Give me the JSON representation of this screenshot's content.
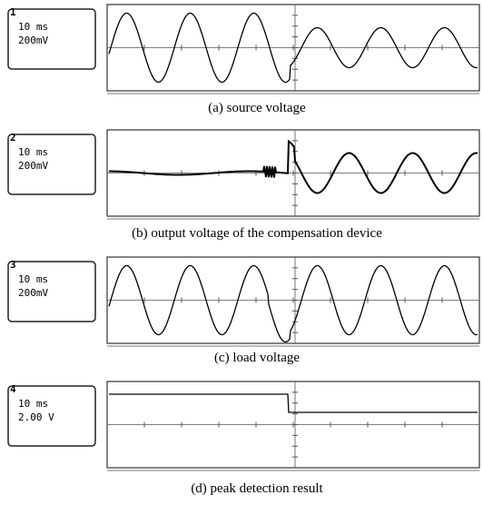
{
  "panels": [
    {
      "channel": "1",
      "timebase": "10 ms",
      "scale": "200mV",
      "caption": "(a) source voltage"
    },
    {
      "channel": "2",
      "timebase": "10 ms",
      "scale": "200mV",
      "caption": "(b) output voltage of the compensation device"
    },
    {
      "channel": "3",
      "timebase": "10 ms",
      "scale": "200mV",
      "caption": "(c) load voltage"
    },
    {
      "channel": "4",
      "timebase": "10 ms",
      "scale": "2.00 V",
      "caption": "(d) peak detection result"
    }
  ]
}
